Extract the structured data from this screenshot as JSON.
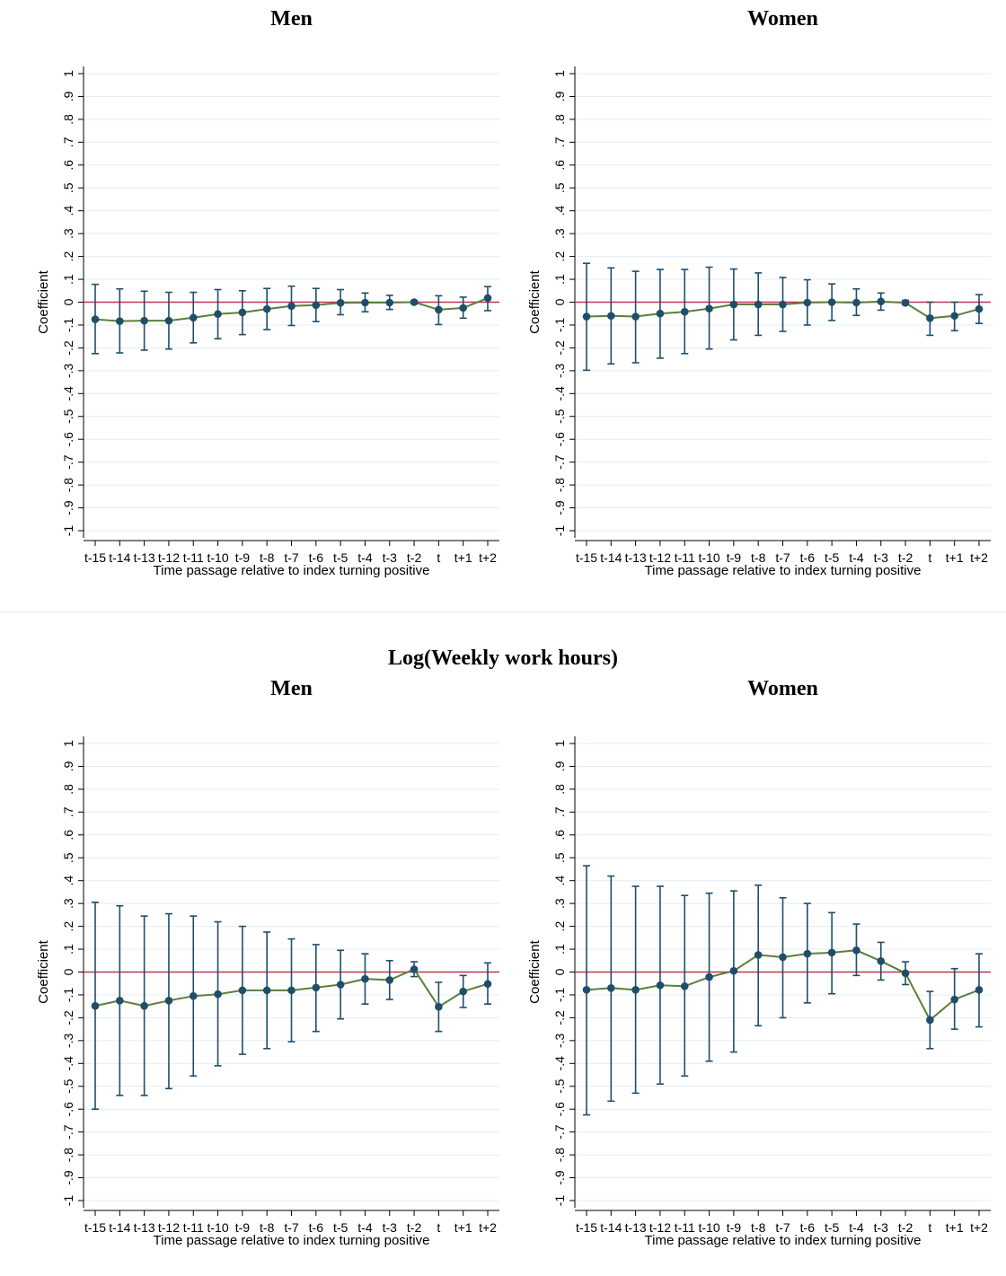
{
  "sections": [
    {
      "title": ""
    },
    {
      "title": "Log(Weekly work hours)"
    }
  ],
  "chart_data": [
    {
      "type": "line",
      "title": "Men",
      "xlabel": "Time passage relative to index turning positive",
      "ylabel": "Coefficient",
      "categories": [
        "t-15",
        "t-14",
        "t-13",
        "t-12",
        "t-11",
        "t-10",
        "t-9",
        "t-8",
        "t-7",
        "t-6",
        "t-5",
        "t-4",
        "t-3",
        "t-2",
        "t",
        "t+1",
        "t+2"
      ],
      "yticks": [
        -1,
        -0.9,
        -0.8,
        -0.7,
        -0.6,
        -0.5,
        -0.4,
        -0.3,
        -0.2,
        -0.1,
        0,
        0.1,
        0.2,
        0.3,
        0.4,
        0.5,
        0.6,
        0.7,
        0.8,
        0.9,
        1
      ],
      "yticklabels": [
        "-1",
        "-.9",
        "-.8",
        "-.7",
        "-.6",
        "-.5",
        "-.4",
        "-.3",
        "-.2",
        "-.1",
        "0",
        ".1",
        ".2",
        ".3",
        ".4",
        ".5",
        ".6",
        ".7",
        ".8",
        ".9",
        "1"
      ],
      "ylim": [
        -1,
        1
      ],
      "grid": true,
      "reference_line": 0,
      "colors": {
        "line": "#5b7f3b",
        "marker": "#1f4e6b",
        "ci": "#1f4e6b",
        "ref": "#c0344f",
        "grid": "#e4ecf0"
      },
      "series": [
        {
          "values": [
            -0.075,
            -0.083,
            -0.081,
            -0.081,
            -0.068,
            -0.052,
            -0.045,
            -0.03,
            -0.017,
            -0.013,
            -0.003,
            -0.002,
            -0.002,
            0.0,
            -0.033,
            -0.025,
            0.018
          ]
        }
      ],
      "ci_low": [
        -0.225,
        -0.222,
        -0.21,
        -0.205,
        -0.178,
        -0.16,
        -0.142,
        -0.12,
        -0.102,
        -0.085,
        -0.055,
        -0.042,
        -0.032,
        -0.007,
        -0.098,
        -0.07,
        -0.037
      ],
      "ci_high": [
        0.078,
        0.058,
        0.048,
        0.043,
        0.043,
        0.055,
        0.05,
        0.06,
        0.07,
        0.06,
        0.055,
        0.04,
        0.03,
        0.007,
        0.028,
        0.022,
        0.068
      ]
    },
    {
      "type": "line",
      "title": "Women",
      "xlabel": "Time passage relative to index turning positive",
      "ylabel": "Coefficient",
      "categories": [
        "t-15",
        "t-14",
        "t-13",
        "t-12",
        "t-11",
        "t-10",
        "t-9",
        "t-8",
        "t-7",
        "t-6",
        "t-5",
        "t-4",
        "t-3",
        "t-2",
        "t",
        "t+1",
        "t+2"
      ],
      "yticks": [
        -1,
        -0.9,
        -0.8,
        -0.7,
        -0.6,
        -0.5,
        -0.4,
        -0.3,
        -0.2,
        -0.1,
        0,
        0.1,
        0.2,
        0.3,
        0.4,
        0.5,
        0.6,
        0.7,
        0.8,
        0.9,
        1
      ],
      "yticklabels": [
        "-1",
        "-.9",
        "-.8",
        "-.7",
        "-.6",
        "-.5",
        "-.4",
        "-.3",
        "-.2",
        "-.1",
        "0",
        ".1",
        ".2",
        ".3",
        ".4",
        ".5",
        ".6",
        ".7",
        ".8",
        ".9",
        "1"
      ],
      "ylim": [
        -1,
        1
      ],
      "grid": true,
      "reference_line": 0,
      "colors": {
        "line": "#5b7f3b",
        "marker": "#1f4e6b",
        "ci": "#1f4e6b",
        "ref": "#c0344f",
        "grid": "#e4ecf0"
      },
      "series": [
        {
          "values": [
            -0.063,
            -0.06,
            -0.063,
            -0.05,
            -0.042,
            -0.028,
            -0.01,
            -0.01,
            -0.01,
            -0.002,
            0.0,
            -0.002,
            0.003,
            -0.003,
            -0.07,
            -0.06,
            -0.03
          ]
        }
      ],
      "ci_low": [
        -0.298,
        -0.27,
        -0.265,
        -0.245,
        -0.225,
        -0.205,
        -0.165,
        -0.145,
        -0.128,
        -0.1,
        -0.08,
        -0.058,
        -0.035,
        -0.012,
        -0.145,
        -0.125,
        -0.093
      ],
      "ci_high": [
        0.17,
        0.15,
        0.135,
        0.143,
        0.143,
        0.153,
        0.145,
        0.128,
        0.108,
        0.098,
        0.08,
        0.058,
        0.04,
        0.008,
        0.0,
        0.0,
        0.033
      ]
    },
    {
      "type": "line",
      "title": "Men",
      "xlabel": "Time passage relative to index turning positive",
      "ylabel": "Coefficient",
      "categories": [
        "t-15",
        "t-14",
        "t-13",
        "t-12",
        "t-11",
        "t-10",
        "t-9",
        "t-8",
        "t-7",
        "t-6",
        "t-5",
        "t-4",
        "t-3",
        "t-2",
        "t",
        "t+1",
        "t+2"
      ],
      "yticks": [
        -1,
        -0.9,
        -0.8,
        -0.7,
        -0.6,
        -0.5,
        -0.4,
        -0.3,
        -0.2,
        -0.1,
        0,
        0.1,
        0.2,
        0.3,
        0.4,
        0.5,
        0.6,
        0.7,
        0.8,
        0.9,
        1
      ],
      "yticklabels": [
        "-1",
        "-.9",
        "-.8",
        "-.7",
        "-.6",
        "-.5",
        "-.4",
        "-.3",
        "-.2",
        "-.1",
        "0",
        ".1",
        ".2",
        ".3",
        ".4",
        ".5",
        ".6",
        ".7",
        ".8",
        ".9",
        "1"
      ],
      "ylim": [
        -1,
        1
      ],
      "grid": true,
      "reference_line": 0,
      "colors": {
        "line": "#5b7f3b",
        "marker": "#1f4e6b",
        "ci": "#1f4e6b",
        "ref": "#c0344f",
        "grid": "#e4ecf0"
      },
      "series": [
        {
          "values": [
            -0.148,
            -0.125,
            -0.148,
            -0.125,
            -0.105,
            -0.097,
            -0.08,
            -0.08,
            -0.08,
            -0.068,
            -0.055,
            -0.03,
            -0.035,
            0.012,
            -0.152,
            -0.085,
            -0.052
          ]
        }
      ],
      "ci_low": [
        -0.6,
        -0.54,
        -0.54,
        -0.51,
        -0.455,
        -0.41,
        -0.36,
        -0.335,
        -0.305,
        -0.26,
        -0.205,
        -0.14,
        -0.12,
        -0.02,
        -0.26,
        -0.155,
        -0.14
      ],
      "ci_high": [
        0.305,
        0.29,
        0.245,
        0.255,
        0.245,
        0.22,
        0.2,
        0.175,
        0.145,
        0.12,
        0.095,
        0.08,
        0.05,
        0.045,
        -0.045,
        -0.015,
        0.04
      ]
    },
    {
      "type": "line",
      "title": "Women",
      "xlabel": "Time passage relative to index turning positive",
      "ylabel": "Coefficient",
      "categories": [
        "t-15",
        "t-14",
        "t-13",
        "t-12",
        "t-11",
        "t-10",
        "t-9",
        "t-8",
        "t-7",
        "t-6",
        "t-5",
        "t-4",
        "t-3",
        "t-2",
        "t",
        "t+1",
        "t+2"
      ],
      "yticks": [
        -1,
        -0.9,
        -0.8,
        -0.7,
        -0.6,
        -0.5,
        -0.4,
        -0.3,
        -0.2,
        -0.1,
        0,
        0.1,
        0.2,
        0.3,
        0.4,
        0.5,
        0.6,
        0.7,
        0.8,
        0.9,
        1
      ],
      "yticklabels": [
        "-1",
        "-.9",
        "-.8",
        "-.7",
        "-.6",
        "-.5",
        "-.4",
        "-.3",
        "-.2",
        "-.1",
        "0",
        ".1",
        ".2",
        ".3",
        ".4",
        ".5",
        ".6",
        ".7",
        ".8",
        ".9",
        "1"
      ],
      "ylim": [
        -1,
        1
      ],
      "grid": true,
      "reference_line": 0,
      "colors": {
        "line": "#5b7f3b",
        "marker": "#1f4e6b",
        "ci": "#1f4e6b",
        "ref": "#c0344f",
        "grid": "#e4ecf0"
      },
      "series": [
        {
          "values": [
            -0.078,
            -0.07,
            -0.078,
            -0.058,
            -0.062,
            -0.022,
            0.005,
            0.075,
            0.065,
            0.08,
            0.085,
            0.095,
            0.048,
            -0.005,
            -0.21,
            -0.12,
            -0.078
          ]
        }
      ],
      "ci_low": [
        -0.625,
        -0.565,
        -0.53,
        -0.49,
        -0.455,
        -0.39,
        -0.35,
        -0.235,
        -0.2,
        -0.135,
        -0.095,
        -0.015,
        -0.035,
        -0.055,
        -0.335,
        -0.25,
        -0.24
      ],
      "ci_high": [
        0.465,
        0.42,
        0.375,
        0.375,
        0.335,
        0.345,
        0.355,
        0.38,
        0.325,
        0.3,
        0.26,
        0.21,
        0.13,
        0.045,
        -0.085,
        0.015,
        0.08
      ]
    }
  ]
}
